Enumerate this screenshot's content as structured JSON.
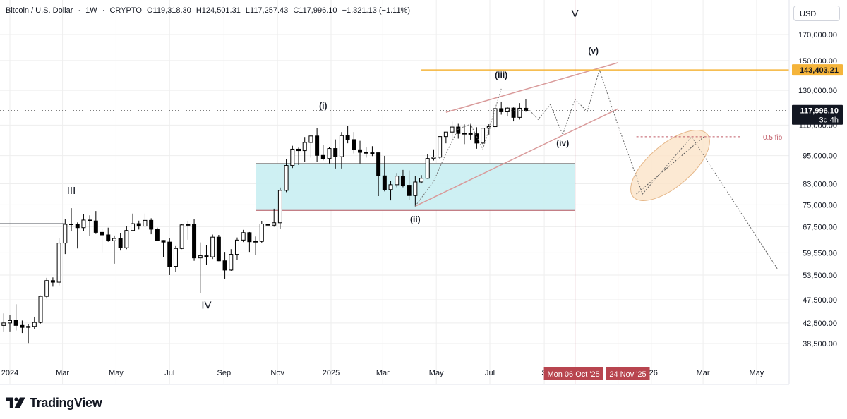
{
  "header": {
    "symbol": "Bitcoin / U.S. Dollar",
    "interval": "1W",
    "exchange": "CRYPTO",
    "open": "O119,318.30",
    "high": "H124,501.31",
    "low": "L117,257.43",
    "close": "C117,996.10",
    "change": "−1,321.13 (−1.11%)"
  },
  "currency_button": "USD",
  "brand": {
    "name": "TradingView",
    "icon": "tradingview-logo-icon"
  },
  "colors": {
    "up": "#ffffff",
    "down": "#000000",
    "grid": "#eeeeee",
    "zone_fill": "#c9eef2",
    "channel": "#d99a9a",
    "vline": "#b85c6a",
    "target_line": "#f5b43a",
    "ellipse_fill": "#fbe3c8",
    "date_badge": "#b8454f",
    "last_price_badge": "#131722"
  },
  "chart_data": {
    "type": "candlestick",
    "symbol": "Bitcoin / U.S. Dollar",
    "interval": "1W",
    "ylim": [
      35000,
      190000
    ],
    "y_scale": "log",
    "y_ticks": [
      "170,000.00",
      "150,000.00",
      "130,000.00",
      "110,000.00",
      "95,000.00",
      "83,000.00",
      "75,000.00",
      "67,500.00",
      "59,550.00",
      "53,500.00",
      "47,500.00",
      "42,500.00",
      "38,500.00"
    ],
    "y_tick_values": [
      170000,
      150000,
      130000,
      110000,
      95000,
      83000,
      75000,
      67500,
      59550,
      53500,
      47500,
      42500,
      38500
    ],
    "x_ticks": [
      {
        "label": "2024",
        "date": "2024-01-01"
      },
      {
        "label": "Mar",
        "date": "2024-03-01"
      },
      {
        "label": "May",
        "date": "2024-05-01"
      },
      {
        "label": "Jul",
        "date": "2024-07-01"
      },
      {
        "label": "Sep",
        "date": "2024-09-01"
      },
      {
        "label": "Nov",
        "date": "2024-11-01"
      },
      {
        "label": "2025",
        "date": "2025-01-01"
      },
      {
        "label": "Mar",
        "date": "2025-03-01"
      },
      {
        "label": "May",
        "date": "2025-05-01"
      },
      {
        "label": "Jul",
        "date": "2025-07-01"
      },
      {
        "label": "S",
        "date": "2025-09-01"
      },
      {
        "label": "026",
        "date": "2026-01-01"
      },
      {
        "label": "Mar",
        "date": "2026-03-01"
      },
      {
        "label": "May",
        "date": "2026-05-01"
      }
    ],
    "candles": [
      {
        "date": "2023-12-25",
        "o": 42000,
        "h": 44500,
        "l": 40800,
        "c": 42500
      },
      {
        "date": "2024-01-01",
        "o": 42500,
        "h": 44200,
        "l": 40800,
        "c": 43000
      },
      {
        "date": "2024-01-08",
        "o": 43000,
        "h": 46500,
        "l": 41000,
        "c": 42000
      },
      {
        "date": "2024-01-15",
        "o": 42000,
        "h": 43000,
        "l": 40500,
        "c": 41600
      },
      {
        "date": "2024-01-22",
        "o": 41600,
        "h": 42200,
        "l": 38600,
        "c": 41800
      },
      {
        "date": "2024-01-29",
        "o": 41800,
        "h": 43800,
        "l": 41300,
        "c": 42600
      },
      {
        "date": "2024-02-05",
        "o": 42600,
        "h": 48500,
        "l": 42400,
        "c": 48300
      },
      {
        "date": "2024-02-12",
        "o": 48300,
        "h": 52800,
        "l": 47800,
        "c": 52100
      },
      {
        "date": "2024-02-19",
        "o": 52100,
        "h": 52900,
        "l": 50600,
        "c": 51700
      },
      {
        "date": "2024-02-26",
        "o": 51700,
        "h": 63800,
        "l": 50900,
        "c": 62400
      },
      {
        "date": "2024-03-04",
        "o": 62400,
        "h": 70100,
        "l": 59200,
        "c": 68300
      },
      {
        "date": "2024-03-11",
        "o": 68300,
        "h": 73800,
        "l": 66000,
        "c": 68400
      },
      {
        "date": "2024-03-18",
        "o": 68400,
        "h": 68900,
        "l": 60800,
        "c": 67200
      },
      {
        "date": "2024-03-25",
        "o": 67200,
        "h": 71800,
        "l": 66200,
        "c": 69700
      },
      {
        "date": "2024-04-01",
        "o": 69700,
        "h": 71300,
        "l": 64600,
        "c": 69400
      },
      {
        "date": "2024-04-08",
        "o": 69400,
        "h": 72800,
        "l": 65200,
        "c": 65700
      },
      {
        "date": "2024-04-15",
        "o": 65700,
        "h": 66900,
        "l": 59700,
        "c": 64900
      },
      {
        "date": "2024-04-22",
        "o": 64900,
        "h": 67200,
        "l": 62800,
        "c": 63100
      },
      {
        "date": "2024-04-29",
        "o": 63100,
        "h": 64700,
        "l": 56500,
        "c": 63800
      },
      {
        "date": "2024-05-06",
        "o": 63800,
        "h": 65500,
        "l": 60200,
        "c": 61000
      },
      {
        "date": "2024-05-13",
        "o": 61000,
        "h": 67700,
        "l": 60600,
        "c": 66300
      },
      {
        "date": "2024-05-20",
        "o": 66300,
        "h": 71900,
        "l": 66100,
        "c": 68500
      },
      {
        "date": "2024-05-27",
        "o": 68500,
        "h": 69500,
        "l": 66600,
        "c": 67700
      },
      {
        "date": "2024-06-03",
        "o": 67700,
        "h": 71900,
        "l": 67600,
        "c": 69600
      },
      {
        "date": "2024-06-10",
        "o": 69600,
        "h": 70300,
        "l": 65100,
        "c": 66700
      },
      {
        "date": "2024-06-17",
        "o": 66700,
        "h": 67200,
        "l": 63300,
        "c": 63200
      },
      {
        "date": "2024-06-24",
        "o": 63200,
        "h": 63300,
        "l": 58400,
        "c": 62700
      },
      {
        "date": "2024-07-01",
        "o": 62700,
        "h": 63800,
        "l": 53500,
        "c": 55800
      },
      {
        "date": "2024-07-08",
        "o": 55800,
        "h": 61500,
        "l": 54400,
        "c": 60800
      },
      {
        "date": "2024-07-15",
        "o": 60800,
        "h": 68300,
        "l": 60600,
        "c": 68100
      },
      {
        "date": "2024-07-22",
        "o": 68100,
        "h": 69400,
        "l": 63400,
        "c": 68200
      },
      {
        "date": "2024-07-29",
        "o": 68200,
        "h": 70000,
        "l": 57300,
        "c": 58100
      },
      {
        "date": "2024-08-05",
        "o": 58100,
        "h": 62600,
        "l": 49100,
        "c": 58700
      },
      {
        "date": "2024-08-12",
        "o": 58700,
        "h": 61800,
        "l": 56100,
        "c": 58400
      },
      {
        "date": "2024-08-19",
        "o": 58400,
        "h": 65000,
        "l": 57800,
        "c": 64200
      },
      {
        "date": "2024-08-26",
        "o": 64200,
        "h": 64900,
        "l": 57200,
        "c": 57300
      },
      {
        "date": "2024-09-02",
        "o": 57300,
        "h": 59800,
        "l": 52600,
        "c": 54800
      },
      {
        "date": "2024-09-09",
        "o": 54800,
        "h": 60600,
        "l": 54600,
        "c": 59100
      },
      {
        "date": "2024-09-16",
        "o": 59100,
        "h": 64100,
        "l": 57500,
        "c": 63300
      },
      {
        "date": "2024-09-23",
        "o": 63300,
        "h": 66500,
        "l": 62700,
        "c": 65600
      },
      {
        "date": "2024-09-30",
        "o": 65600,
        "h": 65800,
        "l": 59800,
        "c": 62800
      },
      {
        "date": "2024-10-07",
        "o": 62800,
        "h": 64400,
        "l": 58900,
        "c": 62900
      },
      {
        "date": "2024-10-14",
        "o": 62900,
        "h": 69400,
        "l": 62400,
        "c": 68400
      },
      {
        "date": "2024-10-21",
        "o": 68400,
        "h": 69500,
        "l": 65100,
        "c": 68000
      },
      {
        "date": "2024-10-28",
        "o": 68000,
        "h": 73600,
        "l": 67500,
        "c": 68800
      },
      {
        "date": "2024-11-04",
        "o": 68800,
        "h": 81500,
        "l": 66800,
        "c": 80400
      },
      {
        "date": "2024-11-11",
        "o": 80400,
        "h": 93300,
        "l": 79700,
        "c": 90600
      },
      {
        "date": "2024-11-18",
        "o": 90600,
        "h": 99600,
        "l": 89500,
        "c": 98000
      },
      {
        "date": "2024-11-25",
        "o": 98000,
        "h": 98700,
        "l": 90800,
        "c": 97300
      },
      {
        "date": "2024-12-02",
        "o": 97300,
        "h": 103900,
        "l": 92100,
        "c": 101200
      },
      {
        "date": "2024-12-09",
        "o": 101200,
        "h": 105000,
        "l": 94100,
        "c": 104400
      },
      {
        "date": "2024-12-16",
        "o": 104400,
        "h": 108300,
        "l": 92200,
        "c": 95100
      },
      {
        "date": "2024-12-23",
        "o": 95100,
        "h": 99900,
        "l": 92900,
        "c": 93700
      },
      {
        "date": "2024-12-30",
        "o": 93700,
        "h": 99000,
        "l": 91500,
        "c": 98300
      },
      {
        "date": "2025-01-06",
        "o": 98300,
        "h": 102700,
        "l": 89300,
        "c": 94500
      },
      {
        "date": "2025-01-13",
        "o": 94500,
        "h": 106400,
        "l": 89300,
        "c": 104600
      },
      {
        "date": "2025-01-20",
        "o": 104600,
        "h": 109600,
        "l": 100800,
        "c": 102600
      },
      {
        "date": "2025-01-27",
        "o": 102600,
        "h": 106400,
        "l": 96000,
        "c": 97700
      },
      {
        "date": "2025-02-03",
        "o": 97700,
        "h": 102000,
        "l": 91500,
        "c": 96500
      },
      {
        "date": "2025-02-10",
        "o": 96500,
        "h": 98800,
        "l": 94100,
        "c": 96100
      },
      {
        "date": "2025-02-17",
        "o": 96100,
        "h": 99400,
        "l": 94800,
        "c": 96300
      },
      {
        "date": "2025-02-24",
        "o": 96300,
        "h": 96400,
        "l": 78200,
        "c": 86200
      },
      {
        "date": "2025-03-03",
        "o": 86200,
        "h": 94900,
        "l": 80000,
        "c": 80700
      },
      {
        "date": "2025-03-10",
        "o": 80700,
        "h": 84100,
        "l": 76600,
        "c": 82600
      },
      {
        "date": "2025-03-17",
        "o": 82600,
        "h": 87400,
        "l": 81600,
        "c": 86100
      },
      {
        "date": "2025-03-24",
        "o": 86100,
        "h": 88700,
        "l": 81600,
        "c": 82400
      },
      {
        "date": "2025-03-31",
        "o": 82400,
        "h": 88500,
        "l": 76700,
        "c": 78400
      },
      {
        "date": "2025-04-07",
        "o": 78400,
        "h": 86000,
        "l": 74400,
        "c": 83700
      },
      {
        "date": "2025-04-14",
        "o": 83700,
        "h": 86500,
        "l": 83100,
        "c": 85200
      },
      {
        "date": "2025-04-21",
        "o": 85200,
        "h": 95700,
        "l": 85000,
        "c": 93700
      },
      {
        "date": "2025-04-28",
        "o": 93700,
        "h": 97900,
        "l": 92800,
        "c": 94300
      },
      {
        "date": "2025-05-05",
        "o": 94300,
        "h": 104300,
        "l": 93400,
        "c": 104100
      },
      {
        "date": "2025-05-12",
        "o": 104100,
        "h": 105800,
        "l": 100800,
        "c": 106400
      },
      {
        "date": "2025-05-19",
        "o": 106400,
        "h": 111900,
        "l": 102100,
        "c": 109000
      },
      {
        "date": "2025-05-26",
        "o": 109000,
        "h": 110700,
        "l": 103100,
        "c": 105700
      },
      {
        "date": "2025-06-02",
        "o": 105700,
        "h": 110400,
        "l": 100400,
        "c": 105600
      },
      {
        "date": "2025-06-09",
        "o": 105600,
        "h": 110400,
        "l": 102600,
        "c": 105500
      },
      {
        "date": "2025-06-16",
        "o": 105500,
        "h": 108900,
        "l": 98200,
        "c": 100900
      },
      {
        "date": "2025-06-23",
        "o": 100900,
        "h": 108500,
        "l": 100400,
        "c": 108400
      },
      {
        "date": "2025-06-30",
        "o": 108400,
        "h": 110500,
        "l": 105100,
        "c": 109200
      },
      {
        "date": "2025-07-07",
        "o": 109200,
        "h": 119500,
        "l": 107500,
        "c": 119100
      },
      {
        "date": "2025-07-14",
        "o": 119100,
        "h": 123200,
        "l": 115700,
        "c": 117300
      },
      {
        "date": "2025-07-21",
        "o": 117300,
        "h": 120200,
        "l": 114700,
        "c": 119400
      },
      {
        "date": "2025-07-28",
        "o": 119400,
        "h": 119800,
        "l": 112000,
        "c": 114200
      },
      {
        "date": "2025-08-04",
        "o": 114200,
        "h": 122300,
        "l": 113000,
        "c": 119300
      },
      {
        "date": "2025-08-11",
        "o": 119300,
        "h": 124500,
        "l": 117300,
        "c": 118000
      }
    ],
    "last_price": {
      "value": 117996.1,
      "label": "117,996.10",
      "countdown": "3d 4h"
    },
    "target_line": {
      "value": 143403.21,
      "label": "143,403.21",
      "from": "2025-04-14"
    },
    "horizontal_level": {
      "value": 68500,
      "to": "2024-03-04"
    },
    "support_zone": {
      "from": "2024-10-07",
      "to": "2025-10-06",
      "top": 91500,
      "bottom": 73000
    },
    "rising_wedge": {
      "upper": [
        {
          "date": "2025-05-12",
          "v": 117000
        },
        {
          "date": "2025-11-24",
          "v": 148500
        }
      ],
      "lower": [
        {
          "date": "2025-04-07",
          "v": 74500
        },
        {
          "date": "2025-11-24",
          "v": 119000
        }
      ]
    },
    "projected_path": [
      {
        "date": "2025-08-11",
        "v": 120500
      },
      {
        "date": "2025-08-25",
        "v": 113000
      },
      {
        "date": "2025-09-08",
        "v": 121500
      },
      {
        "date": "2025-09-22",
        "v": 105000
      },
      {
        "date": "2025-10-06",
        "v": 124500
      },
      {
        "date": "2025-10-20",
        "v": 117500
      },
      {
        "date": "2025-11-03",
        "v": 143403.21
      },
      {
        "date": "2025-11-24",
        "v": 110000
      },
      {
        "date": "2025-12-22",
        "v": 79000
      },
      {
        "date": "2026-02-16",
        "v": 104000
      },
      {
        "date": "2026-05-25",
        "v": 55000
      }
    ],
    "wave3_projection": [
      {
        "date": "2025-04-07",
        "v": 74500
      },
      {
        "date": "2025-04-28",
        "v": 84000
      },
      {
        "date": "2025-05-12",
        "v": 96000
      },
      {
        "date": "2025-05-26",
        "v": 108000
      },
      {
        "date": "2025-06-09",
        "v": 110500
      },
      {
        "date": "2025-06-23",
        "v": 98000
      },
      {
        "date": "2025-07-14",
        "v": 131000
      }
    ],
    "fib_level": {
      "value": 104000,
      "label": "0.5 fib",
      "from": "2025-12-15",
      "to": "2026-04-13"
    },
    "ellipse": {
      "from": "2025-12-15",
      "to": "2026-03-02",
      "start_v": 79000,
      "end_v": 104000
    },
    "vertical_lines": [
      {
        "date": "2025-10-06",
        "label": "Mon 06 Oct '25"
      },
      {
        "date": "2025-11-24",
        "label": "24 Nov '25"
      }
    ],
    "wave_labels": [
      {
        "text": "III",
        "date": "2024-03-11",
        "v": 79000
      },
      {
        "text": "IV",
        "date": "2024-08-12",
        "v": 45500
      },
      {
        "text": "V",
        "date": "2025-10-06",
        "v": 185000
      },
      {
        "text": "(i)",
        "date": "2024-12-23",
        "v": 119000
      },
      {
        "text": "(ii)",
        "date": "2025-04-07",
        "v": 69000
      },
      {
        "text": "(iii)",
        "date": "2025-07-14",
        "v": 138000
      },
      {
        "text": "(iv)",
        "date": "2025-09-22",
        "v": 99500
      },
      {
        "text": "(v)",
        "date": "2025-10-27",
        "v": 155000
      }
    ]
  }
}
